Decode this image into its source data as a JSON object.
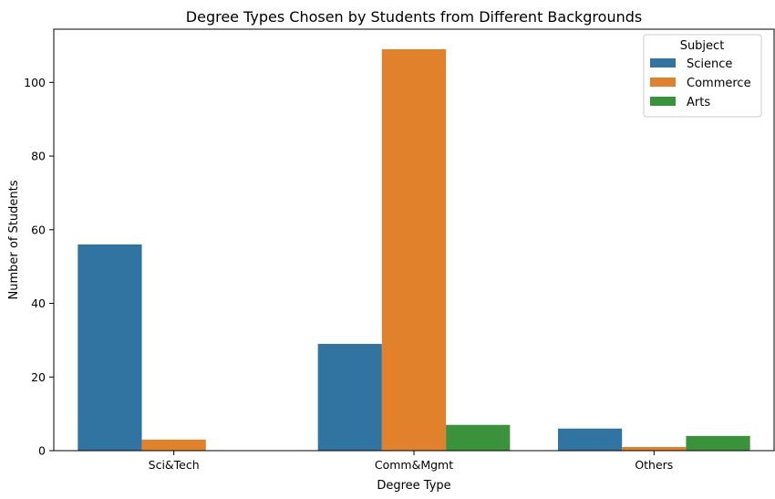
{
  "chart_data": {
    "type": "bar",
    "title": "Degree Types Chosen by Students from Different Backgrounds",
    "xlabel": "Degree Type",
    "ylabel": "Number of Students",
    "categories": [
      "Sci&Tech",
      "Comm&Mgmt",
      "Others"
    ],
    "series": [
      {
        "name": "Science",
        "values": [
          56,
          29,
          6
        ],
        "color": "#3274a1"
      },
      {
        "name": "Commerce",
        "values": [
          3,
          109,
          1
        ],
        "color": "#e1812c"
      },
      {
        "name": "Arts",
        "values": [
          0,
          7,
          4
        ],
        "color": "#3a923a"
      }
    ],
    "ylim": [
      0,
      114.45
    ],
    "yticks": [
      0,
      20,
      40,
      60,
      80,
      100
    ],
    "grid": false,
    "legend": {
      "title": "Subject",
      "placement": "top-right"
    }
  }
}
